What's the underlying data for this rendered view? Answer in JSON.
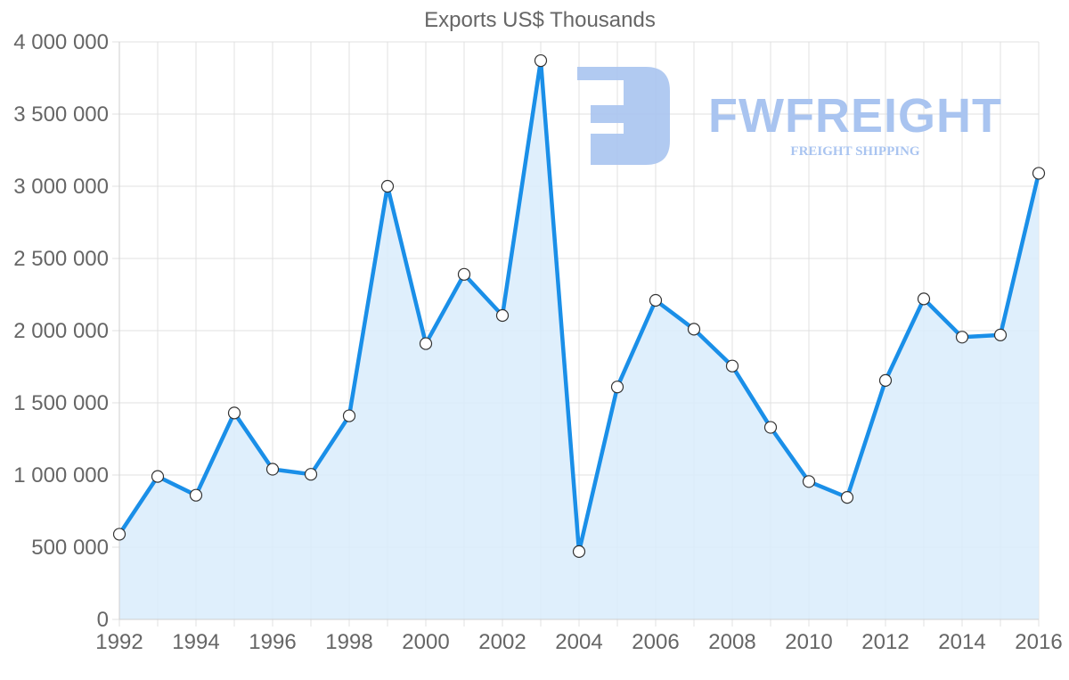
{
  "chart_data": {
    "type": "area",
    "title": "Exports US$ Thousands",
    "xlabel": "",
    "ylabel": "",
    "x": [
      1992,
      1993,
      1994,
      1995,
      1996,
      1997,
      1998,
      1999,
      2000,
      2001,
      2002,
      2003,
      2004,
      2005,
      2006,
      2007,
      2008,
      2009,
      2010,
      2011,
      2012,
      2013,
      2014,
      2015,
      2016
    ],
    "series": [
      {
        "name": "Exports US$ Thousands",
        "values": [
          590000,
          990000,
          860000,
          1430000,
          1040000,
          1005000,
          1410000,
          3000000,
          1910000,
          2390000,
          2105000,
          3870000,
          470000,
          1610000,
          2210000,
          2010000,
          1755000,
          1330000,
          955000,
          845000,
          1655000,
          2220000,
          1955000,
          1970000,
          3090000
        ]
      }
    ],
    "ylim": [
      0,
      4000000
    ],
    "yticks": [
      0,
      500000,
      1000000,
      1500000,
      2000000,
      2500000,
      3000000,
      3500000,
      4000000
    ],
    "ytick_labels": [
      "0",
      "500 000",
      "1 000 000",
      "1 500 000",
      "2 000 000",
      "2 500 000",
      "3 000 000",
      "3 500 000",
      "4 000 000"
    ],
    "xticks": [
      1992,
      1994,
      1996,
      1998,
      2000,
      2002,
      2004,
      2006,
      2008,
      2010,
      2012,
      2014,
      2016
    ],
    "xtick_labels": [
      "1992",
      "1994",
      "1996",
      "1998",
      "2000",
      "2002",
      "2004",
      "2006",
      "2008",
      "2010",
      "2012",
      "2014",
      "2016"
    ],
    "grid": true,
    "legend": "none",
    "colors": {
      "line": "#1a8fe8",
      "fill": "#d9ecfc",
      "point_fill": "#ffffff",
      "point_stroke": "#333333"
    }
  },
  "watermark": {
    "brand": "FWFREIGHT",
    "tagline": "FREIGHT SHIPPING",
    "color": "#a9c4f0"
  }
}
